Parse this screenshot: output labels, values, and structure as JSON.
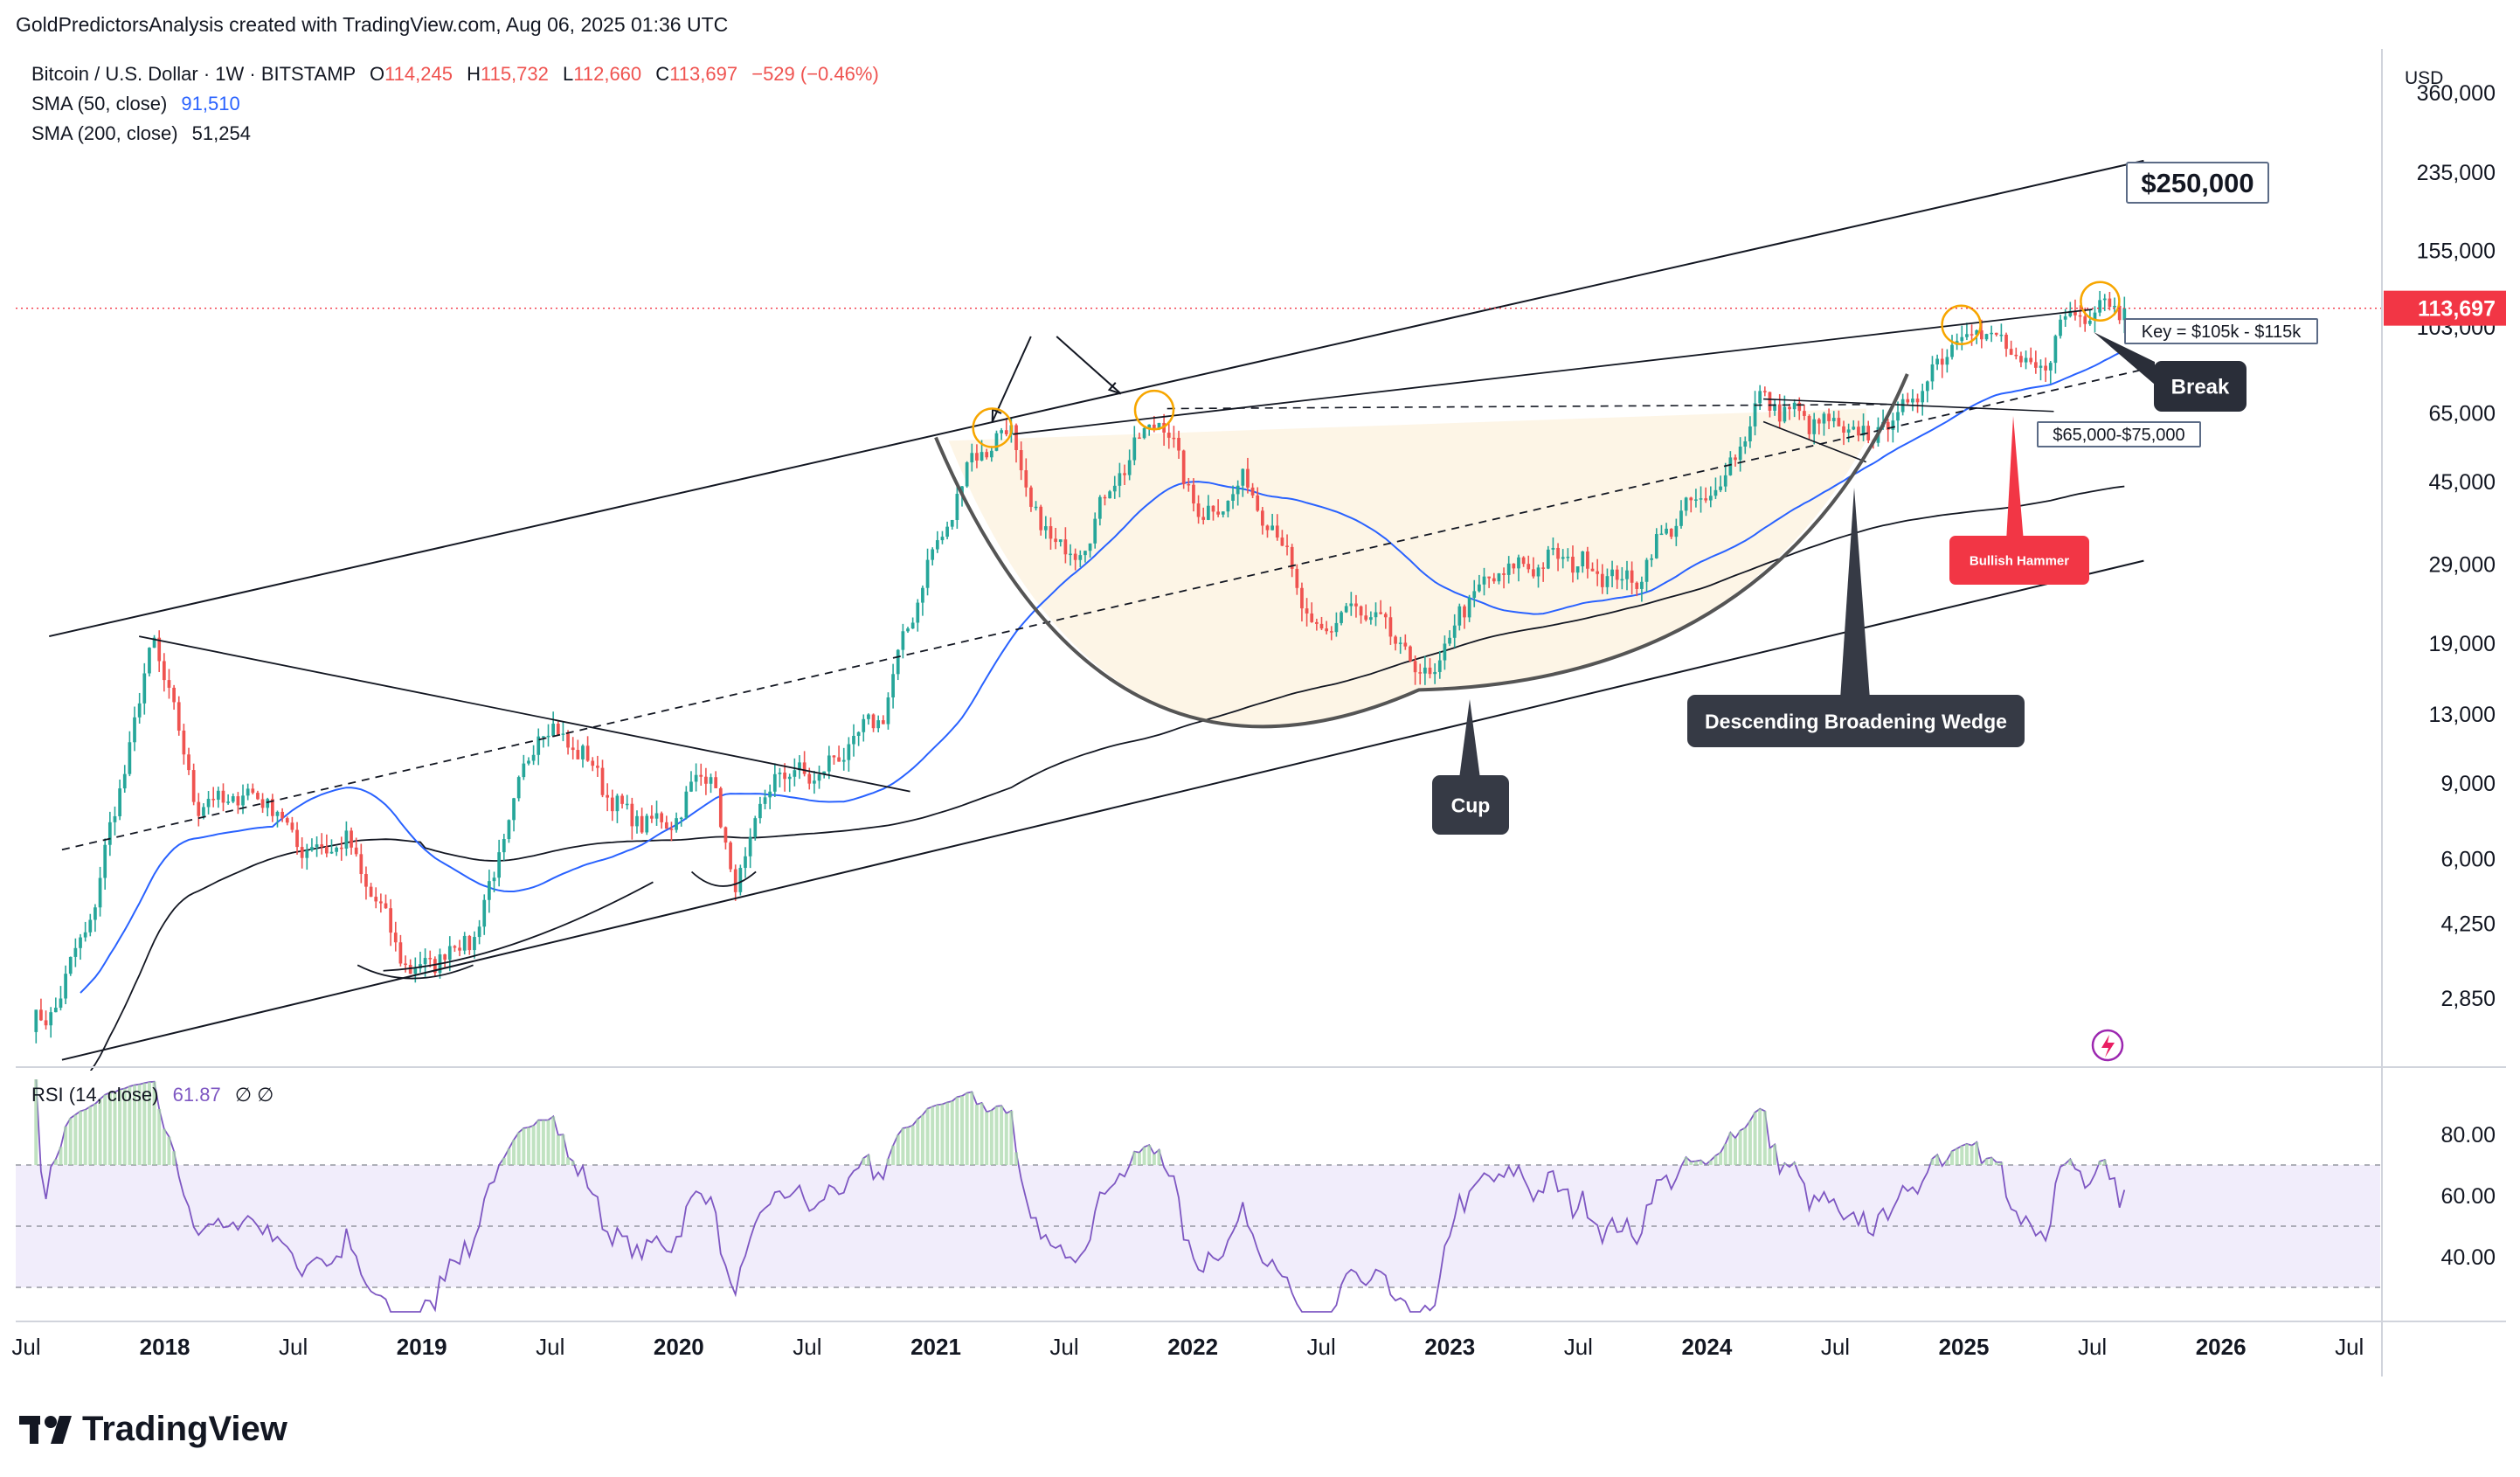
{
  "header": {
    "caption": "GoldPredictorsAnalysis created with TradingView.com, Aug 06, 2025 01:36 UTC"
  },
  "legend": {
    "symbol": "Bitcoin / U.S. Dollar · 1W · BITSTAMP",
    "o_label": "O",
    "o_value": "114,245",
    "h_label": "H",
    "h_value": "115,732",
    "l_label": "L",
    "l_value": "112,660",
    "c_label": "C",
    "c_value": "113,697",
    "change": "−529 (−0.46%)",
    "sma50_label": "SMA (50, close)",
    "sma50_value": "91,510",
    "sma200_label": "SMA (200, close)",
    "sma200_value": "51,254",
    "rsi_label": "RSI (14, close)",
    "rsi_value": "61.87",
    "rsi_extra": "∅  ∅"
  },
  "price_axis": {
    "currency": "USD",
    "ticks": [
      "360,000",
      "235,000",
      "155,000",
      "103,000",
      "65,000",
      "45,000",
      "29,000",
      "19,000",
      "13,000",
      "9,000",
      "6,000",
      "4,250",
      "2,850"
    ],
    "last_price": "113,697"
  },
  "rsi_axis": {
    "ticks": [
      "80.00",
      "60.00",
      "40.00"
    ]
  },
  "time_axis": {
    "ticks": [
      "Jul",
      "2018",
      "Jul",
      "2019",
      "Jul",
      "2020",
      "Jul",
      "2021",
      "Jul",
      "2022",
      "Jul",
      "2023",
      "Jul",
      "2024",
      "Jul",
      "2025",
      "Jul",
      "2026",
      "Jul"
    ]
  },
  "annotations": {
    "target": "$250,000",
    "key_zone": "Key = $105k - $115k",
    "break": "Break",
    "support_zone": "$65,000-$75,000",
    "hammer": "Bullish Hammer",
    "wedge": "Descending Broadening Wedge",
    "cup": "Cup"
  },
  "brand": {
    "name": "TradingView"
  },
  "colors": {
    "up": "#26a69a",
    "down": "#ef5350",
    "sma50": "#2962ff",
    "sma200": "#131722",
    "rsi": "#7e57c2",
    "price_tag": "#f23645"
  },
  "chart_data": {
    "type": "candlestick",
    "title": "Bitcoin / U.S. Dollar · 1W · BITSTAMP",
    "scale": "log",
    "ylim": [
      2000,
      450000
    ],
    "x_range": [
      "2017-06",
      "2026-08"
    ],
    "anchors": [
      [
        "2017-07",
        2500
      ],
      [
        "2017-09",
        4300
      ],
      [
        "2017-12",
        19600
      ],
      [
        "2018-02",
        8000
      ],
      [
        "2018-05",
        8500
      ],
      [
        "2018-07",
        6300
      ],
      [
        "2018-09",
        6500
      ],
      [
        "2018-12",
        3250
      ],
      [
        "2019-03",
        4000
      ],
      [
        "2019-06",
        12500
      ],
      [
        "2019-08",
        10500
      ],
      [
        "2019-10",
        7500
      ],
      [
        "2019-12",
        7200
      ],
      [
        "2020-02",
        10000
      ],
      [
        "2020-03",
        5000
      ],
      [
        "2020-05",
        9500
      ],
      [
        "2020-07",
        9300
      ],
      [
        "2020-10",
        13000
      ],
      [
        "2020-12",
        28000
      ],
      [
        "2021-01",
        35000
      ],
      [
        "2021-02",
        50000
      ],
      [
        "2021-04",
        60000
      ],
      [
        "2021-05",
        37000
      ],
      [
        "2021-07",
        30000
      ],
      [
        "2021-09",
        47000
      ],
      [
        "2021-11",
        65000
      ],
      [
        "2021-12",
        47000
      ],
      [
        "2022-01",
        37000
      ],
      [
        "2022-03",
        45000
      ],
      [
        "2022-05",
        30000
      ],
      [
        "2022-06",
        19500
      ],
      [
        "2022-08",
        23000
      ],
      [
        "2022-10",
        19500
      ],
      [
        "2022-11",
        16000
      ],
      [
        "2022-12",
        16500
      ],
      [
        "2023-01",
        23000
      ],
      [
        "2023-03",
        28000
      ],
      [
        "2023-06",
        30000
      ],
      [
        "2023-09",
        26000
      ],
      [
        "2023-11",
        37000
      ],
      [
        "2024-01",
        43000
      ],
      [
        "2024-03",
        70000
      ],
      [
        "2024-05",
        63000
      ],
      [
        "2024-08",
        57000
      ],
      [
        "2024-10",
        68000
      ],
      [
        "2024-12",
        97000
      ],
      [
        "2025-01",
        102000
      ],
      [
        "2025-02",
        96000
      ],
      [
        "2025-04",
        78000
      ],
      [
        "2025-05",
        105000
      ],
      [
        "2025-07",
        118000
      ],
      [
        "2025-08",
        113697
      ]
    ],
    "sma50_value": 91510,
    "sma200_value": 51254,
    "rsi_value": 61.87,
    "rsi_ylim": [
      20,
      100
    ],
    "rsi_levels": [
      70,
      50,
      30
    ]
  }
}
